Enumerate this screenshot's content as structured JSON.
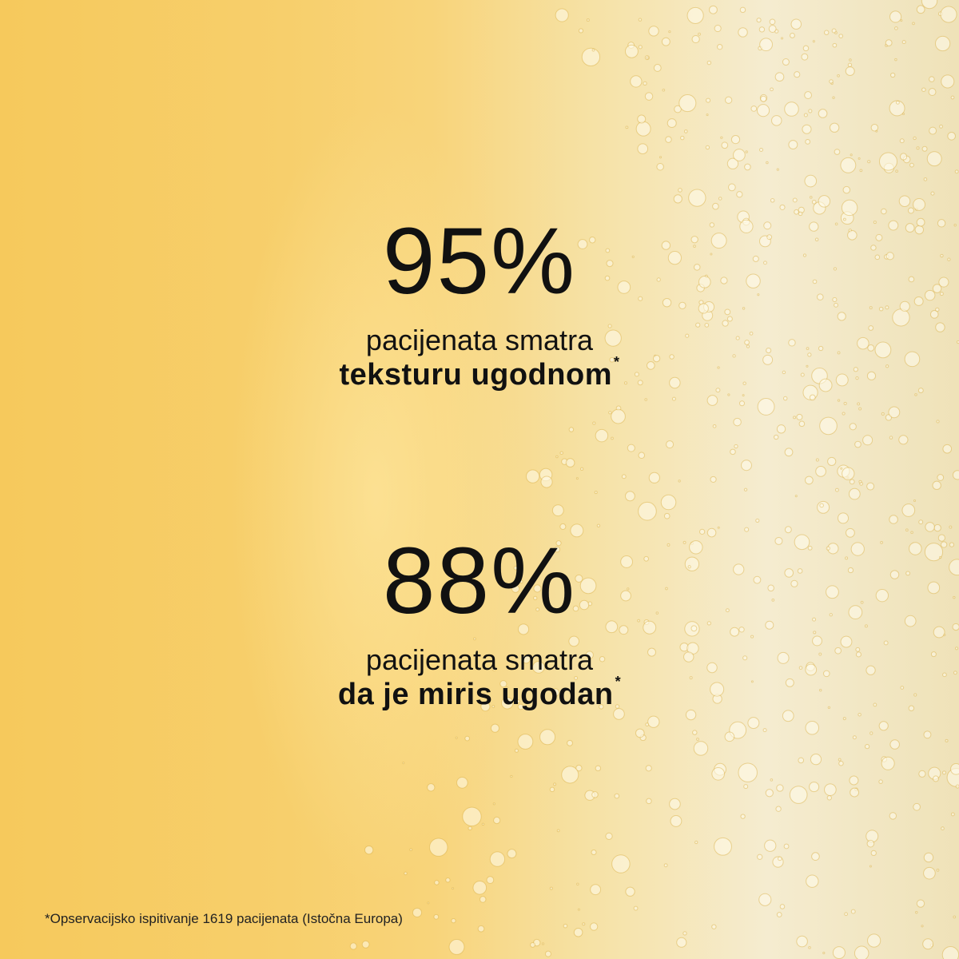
{
  "stats": [
    {
      "percent": "95%",
      "line1": "pacijenata smatra",
      "line2": "teksturu ugodnom",
      "mark": "*"
    },
    {
      "percent": "88%",
      "line1": "pacijenata smatra",
      "line2": "da je miris ugodan",
      "mark": "*"
    }
  ],
  "footnote": "*Opservacijsko ispitivanje 1619 pacijenata (Istočna Europa)",
  "colors": {
    "background_yellow": "#f7cf6c",
    "foam_cream": "#f5ecd0",
    "text": "#111111"
  }
}
